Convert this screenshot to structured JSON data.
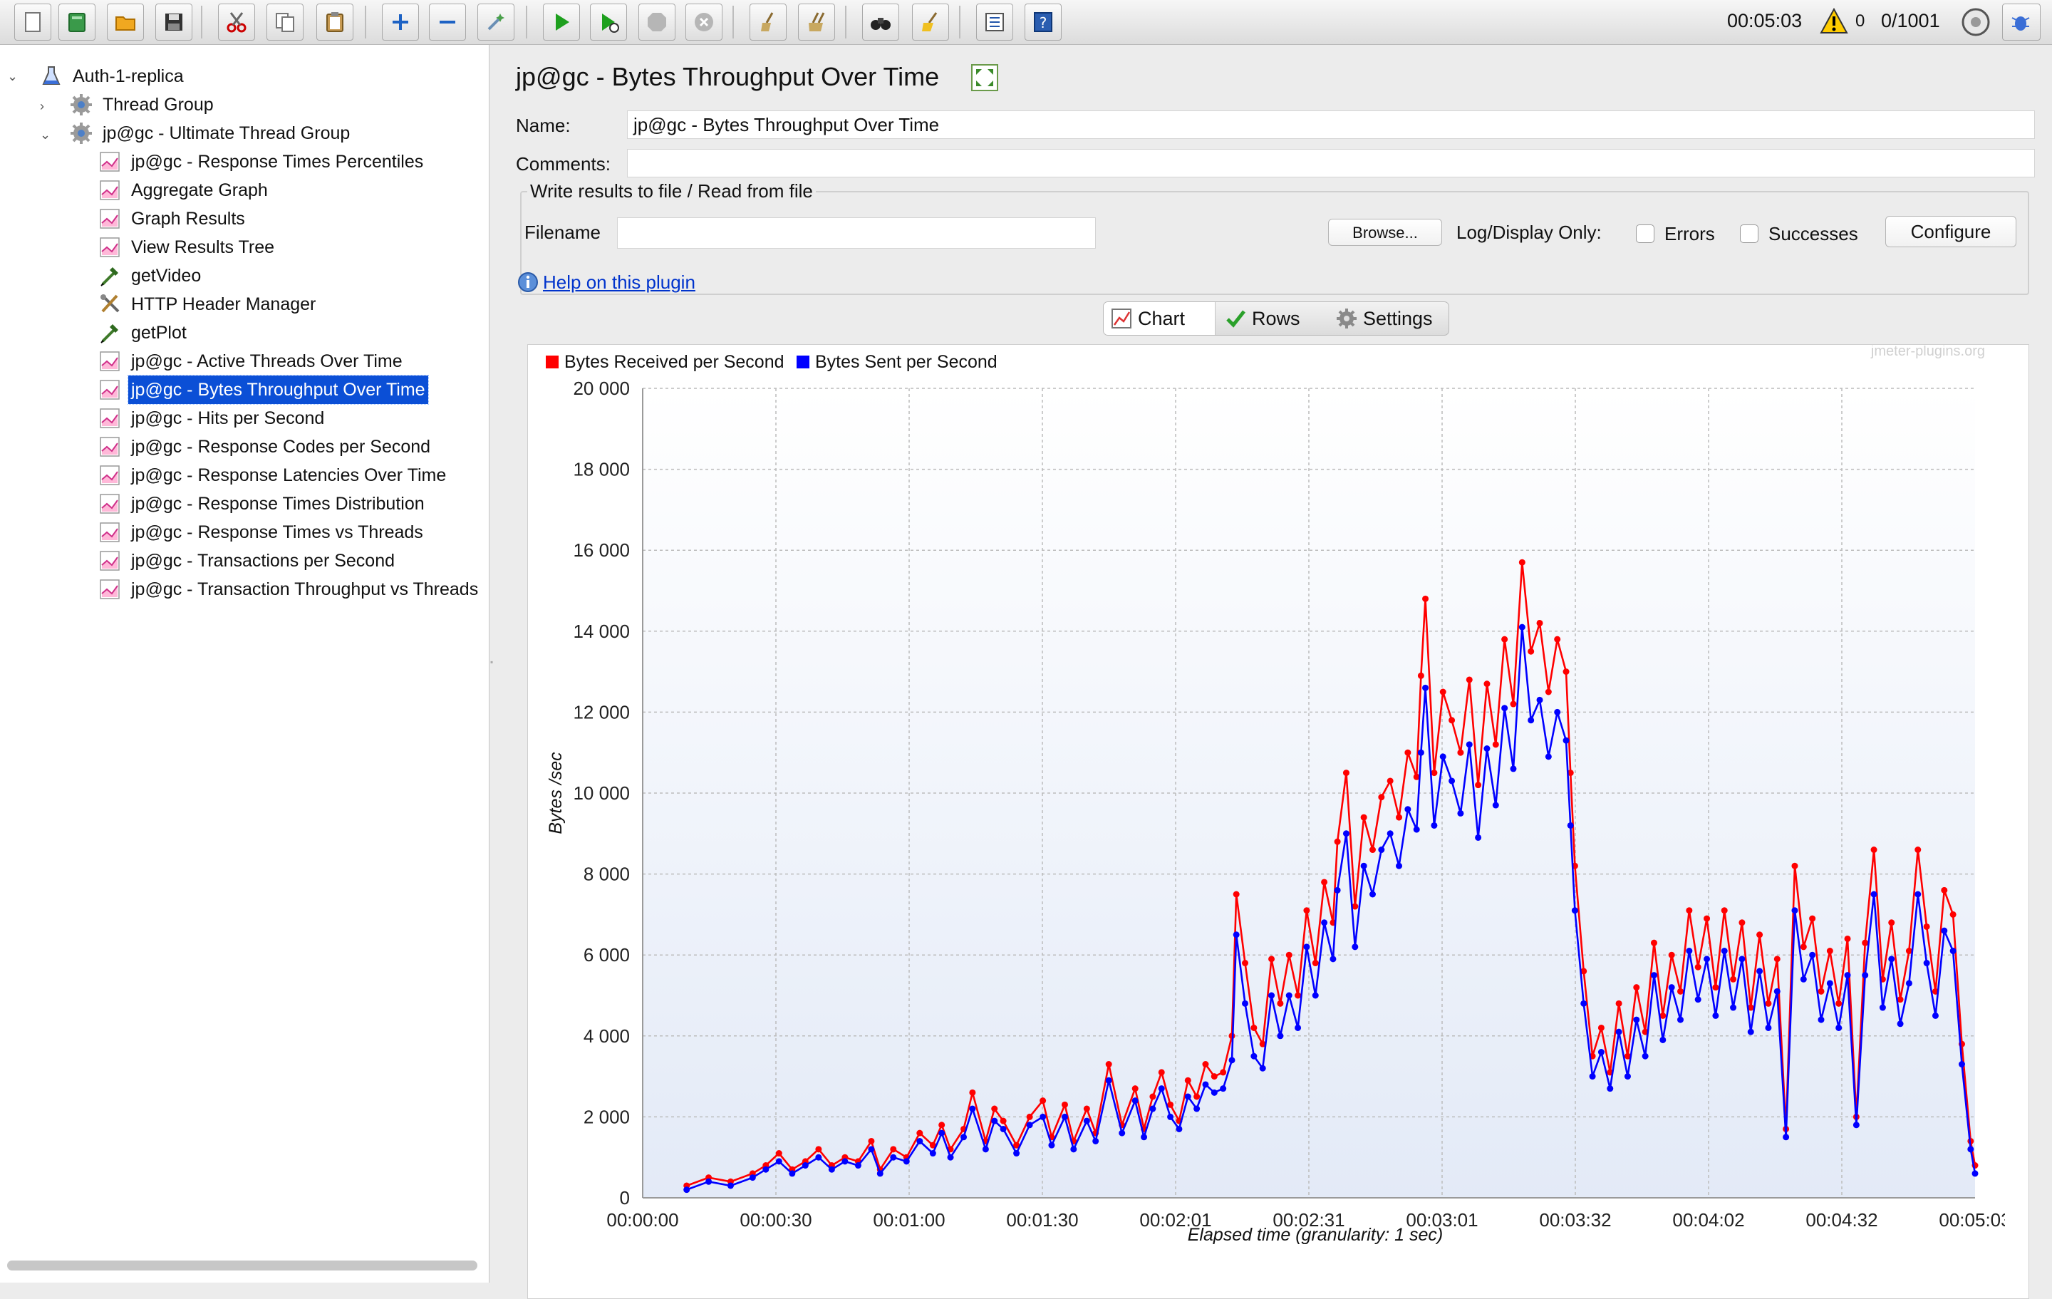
{
  "toolbar": {
    "elapsed": "00:05:03",
    "warning_count": "0",
    "threads": "0/1001"
  },
  "tree": {
    "items": [
      {
        "label": "Auth-1-replica",
        "level": 0,
        "icon": "flask-icon"
      },
      {
        "label": "Thread Group",
        "level": 1,
        "icon": "thread-group-icon"
      },
      {
        "label": "jp@gc - Ultimate Thread Group",
        "level": 1,
        "icon": "thread-group-icon"
      },
      {
        "label": "jp@gc - Response Times Percentiles",
        "level": 2,
        "icon": "graph-listener-icon"
      },
      {
        "label": "Aggregate Graph",
        "level": 2,
        "icon": "graph-listener-icon"
      },
      {
        "label": "Graph Results",
        "level": 2,
        "icon": "graph-listener-icon"
      },
      {
        "label": "View Results Tree",
        "level": 2,
        "icon": "graph-listener-icon"
      },
      {
        "label": "getVideo",
        "level": 2,
        "icon": "pipette-sampler-icon"
      },
      {
        "label": "HTTP Header Manager",
        "level": 2,
        "icon": "tools-config-icon"
      },
      {
        "label": "getPlot",
        "level": 2,
        "icon": "pipette-sampler-icon"
      },
      {
        "label": "jp@gc - Active Threads Over Time",
        "level": 2,
        "icon": "graph-listener-icon"
      },
      {
        "label": "jp@gc - Bytes Throughput Over Time",
        "level": 2,
        "icon": "graph-listener-icon",
        "selected": true
      },
      {
        "label": "jp@gc - Hits per Second",
        "level": 2,
        "icon": "graph-listener-icon"
      },
      {
        "label": "jp@gc - Response Codes per Second",
        "level": 2,
        "icon": "graph-listener-icon"
      },
      {
        "label": "jp@gc - Response Latencies Over Time",
        "level": 2,
        "icon": "graph-listener-icon"
      },
      {
        "label": "jp@gc - Response Times Distribution",
        "level": 2,
        "icon": "graph-listener-icon"
      },
      {
        "label": "jp@gc - Response Times vs Threads",
        "level": 2,
        "icon": "graph-listener-icon"
      },
      {
        "label": "jp@gc - Transactions per Second",
        "level": 2,
        "icon": "graph-listener-icon"
      },
      {
        "label": "jp@gc - Transaction Throughput vs Threads",
        "level": 2,
        "icon": "graph-listener-icon"
      }
    ]
  },
  "panel": {
    "title": "jp@gc - Bytes Throughput Over Time",
    "name_label": "Name:",
    "name_value": "jp@gc - Bytes Throughput Over Time",
    "comments_label": "Comments:",
    "comments_value": "",
    "fieldset_legend": "Write results to file / Read from file",
    "filename_label": "Filename",
    "filename_value": "",
    "browse_label": "Browse...",
    "log_display_label": "Log/Display Only:",
    "errors_label": "Errors",
    "successes_label": "Successes",
    "configure_label": "Configure",
    "help_link": "Help on this plugin",
    "tabs": {
      "chart": "Chart",
      "rows": "Rows",
      "settings": "Settings"
    }
  },
  "chart_data": {
    "type": "line",
    "watermark": "jmeter-plugins.org",
    "xlabel": "Elapsed time (granularity: 1 sec)",
    "ylabel": "Bytes /sec",
    "ylim": [
      0,
      20000
    ],
    "xlim_sec": [
      0,
      303
    ],
    "y_ticks": [
      "20 000",
      "18 000",
      "16 000",
      "14 000",
      "12 000",
      "10 000",
      "8 000",
      "6 000",
      "4 000",
      "2 000",
      "0"
    ],
    "x_ticks": [
      "00:00:00",
      "00:00:30",
      "00:01:00",
      "00:01:30",
      "00:02:01",
      "00:02:31",
      "00:03:01",
      "00:03:32",
      "00:04:02",
      "00:04:32",
      "00:05:03"
    ],
    "grid": true,
    "legend_position": "top-left",
    "colors": {
      "received": "#ff0000",
      "sent": "#0000ff"
    },
    "series": [
      {
        "name": "Bytes Received per Second",
        "points": [
          [
            10,
            300
          ],
          [
            15,
            500
          ],
          [
            20,
            400
          ],
          [
            25,
            600
          ],
          [
            28,
            800
          ],
          [
            31,
            1100
          ],
          [
            34,
            700
          ],
          [
            37,
            900
          ],
          [
            40,
            1200
          ],
          [
            43,
            800
          ],
          [
            46,
            1000
          ],
          [
            49,
            900
          ],
          [
            52,
            1400
          ],
          [
            54,
            700
          ],
          [
            57,
            1200
          ],
          [
            60,
            1000
          ],
          [
            63,
            1600
          ],
          [
            66,
            1300
          ],
          [
            68,
            1800
          ],
          [
            70,
            1200
          ],
          [
            73,
            1700
          ],
          [
            75,
            2600
          ],
          [
            78,
            1400
          ],
          [
            80,
            2200
          ],
          [
            82,
            1900
          ],
          [
            85,
            1300
          ],
          [
            88,
            2000
          ],
          [
            91,
            2400
          ],
          [
            93,
            1500
          ],
          [
            96,
            2300
          ],
          [
            98,
            1400
          ],
          [
            101,
            2200
          ],
          [
            103,
            1600
          ],
          [
            106,
            3300
          ],
          [
            109,
            1800
          ],
          [
            112,
            2700
          ],
          [
            114,
            1700
          ],
          [
            116,
            2500
          ],
          [
            118,
            3100
          ],
          [
            120,
            2300
          ],
          [
            122,
            1900
          ],
          [
            124,
            2900
          ],
          [
            126,
            2500
          ],
          [
            128,
            3300
          ],
          [
            130,
            3000
          ],
          [
            132,
            3100
          ],
          [
            134,
            4000
          ],
          [
            135,
            7500
          ],
          [
            137,
            5800
          ],
          [
            139,
            4200
          ],
          [
            141,
            3800
          ],
          [
            143,
            5900
          ],
          [
            145,
            4800
          ],
          [
            147,
            6000
          ],
          [
            149,
            5000
          ],
          [
            151,
            7100
          ],
          [
            153,
            5800
          ],
          [
            155,
            7800
          ],
          [
            157,
            6800
          ],
          [
            158,
            8800
          ],
          [
            160,
            10500
          ],
          [
            162,
            7200
          ],
          [
            164,
            9400
          ],
          [
            166,
            8600
          ],
          [
            168,
            9900
          ],
          [
            170,
            10300
          ],
          [
            172,
            9400
          ],
          [
            174,
            11000
          ],
          [
            176,
            10400
          ],
          [
            177,
            12900
          ],
          [
            178,
            14800
          ],
          [
            180,
            10500
          ],
          [
            182,
            12500
          ],
          [
            184,
            11800
          ],
          [
            186,
            11000
          ],
          [
            188,
            12800
          ],
          [
            190,
            10200
          ],
          [
            192,
            12700
          ],
          [
            194,
            11200
          ],
          [
            196,
            13800
          ],
          [
            198,
            12200
          ],
          [
            200,
            15700
          ],
          [
            202,
            13500
          ],
          [
            204,
            14200
          ],
          [
            206,
            12500
          ],
          [
            208,
            13800
          ],
          [
            210,
            13000
          ],
          [
            211,
            10500
          ],
          [
            212,
            8200
          ],
          [
            214,
            5600
          ],
          [
            216,
            3500
          ],
          [
            218,
            4200
          ],
          [
            220,
            3100
          ],
          [
            222,
            4800
          ],
          [
            224,
            3500
          ],
          [
            226,
            5200
          ],
          [
            228,
            4100
          ],
          [
            230,
            6300
          ],
          [
            232,
            4500
          ],
          [
            234,
            6000
          ],
          [
            236,
            5100
          ],
          [
            238,
            7100
          ],
          [
            240,
            5700
          ],
          [
            242,
            6900
          ],
          [
            244,
            5200
          ],
          [
            246,
            7100
          ],
          [
            248,
            5400
          ],
          [
            250,
            6800
          ],
          [
            252,
            4700
          ],
          [
            254,
            6500
          ],
          [
            256,
            4800
          ],
          [
            258,
            5900
          ],
          [
            260,
            1700
          ],
          [
            262,
            8200
          ],
          [
            264,
            6200
          ],
          [
            266,
            6900
          ],
          [
            268,
            5100
          ],
          [
            270,
            6100
          ],
          [
            272,
            4800
          ],
          [
            274,
            6400
          ],
          [
            276,
            2000
          ],
          [
            278,
            6300
          ],
          [
            280,
            8600
          ],
          [
            282,
            5400
          ],
          [
            284,
            6800
          ],
          [
            286,
            4900
          ],
          [
            288,
            6100
          ],
          [
            290,
            8600
          ],
          [
            292,
            6700
          ],
          [
            294,
            5100
          ],
          [
            296,
            7600
          ],
          [
            298,
            7000
          ],
          [
            300,
            3800
          ],
          [
            302,
            1400
          ],
          [
            303,
            800
          ]
        ]
      },
      {
        "name": "Bytes Sent per Second",
        "points": [
          [
            10,
            200
          ],
          [
            15,
            400
          ],
          [
            20,
            300
          ],
          [
            25,
            500
          ],
          [
            28,
            700
          ],
          [
            31,
            900
          ],
          [
            34,
            600
          ],
          [
            37,
            800
          ],
          [
            40,
            1000
          ],
          [
            43,
            700
          ],
          [
            46,
            900
          ],
          [
            49,
            800
          ],
          [
            52,
            1200
          ],
          [
            54,
            600
          ],
          [
            57,
            1000
          ],
          [
            60,
            900
          ],
          [
            63,
            1400
          ],
          [
            66,
            1100
          ],
          [
            68,
            1600
          ],
          [
            70,
            1000
          ],
          [
            73,
            1500
          ],
          [
            75,
            2200
          ],
          [
            78,
            1200
          ],
          [
            80,
            1900
          ],
          [
            82,
            1700
          ],
          [
            85,
            1100
          ],
          [
            88,
            1800
          ],
          [
            91,
            2000
          ],
          [
            93,
            1300
          ],
          [
            96,
            2000
          ],
          [
            98,
            1200
          ],
          [
            101,
            1900
          ],
          [
            103,
            1400
          ],
          [
            106,
            2900
          ],
          [
            109,
            1600
          ],
          [
            112,
            2400
          ],
          [
            114,
            1500
          ],
          [
            116,
            2200
          ],
          [
            118,
            2700
          ],
          [
            120,
            2000
          ],
          [
            122,
            1700
          ],
          [
            124,
            2500
          ],
          [
            126,
            2200
          ],
          [
            128,
            2800
          ],
          [
            130,
            2600
          ],
          [
            132,
            2700
          ],
          [
            134,
            3400
          ],
          [
            135,
            6500
          ],
          [
            137,
            4800
          ],
          [
            139,
            3500
          ],
          [
            141,
            3200
          ],
          [
            143,
            5000
          ],
          [
            145,
            4000
          ],
          [
            147,
            5000
          ],
          [
            149,
            4200
          ],
          [
            151,
            6200
          ],
          [
            153,
            5000
          ],
          [
            155,
            6800
          ],
          [
            157,
            5900
          ],
          [
            158,
            7600
          ],
          [
            160,
            9000
          ],
          [
            162,
            6200
          ],
          [
            164,
            8200
          ],
          [
            166,
            7500
          ],
          [
            168,
            8600
          ],
          [
            170,
            9000
          ],
          [
            172,
            8200
          ],
          [
            174,
            9600
          ],
          [
            176,
            9100
          ],
          [
            177,
            11000
          ],
          [
            178,
            12600
          ],
          [
            180,
            9200
          ],
          [
            182,
            10900
          ],
          [
            184,
            10300
          ],
          [
            186,
            9500
          ],
          [
            188,
            11200
          ],
          [
            190,
            8900
          ],
          [
            192,
            11100
          ],
          [
            194,
            9700
          ],
          [
            196,
            12100
          ],
          [
            198,
            10600
          ],
          [
            200,
            14100
          ],
          [
            202,
            11800
          ],
          [
            204,
            12300
          ],
          [
            206,
            10900
          ],
          [
            208,
            12000
          ],
          [
            210,
            11300
          ],
          [
            211,
            9200
          ],
          [
            212,
            7100
          ],
          [
            214,
            4800
          ],
          [
            216,
            3000
          ],
          [
            218,
            3600
          ],
          [
            220,
            2700
          ],
          [
            222,
            4100
          ],
          [
            224,
            3000
          ],
          [
            226,
            4400
          ],
          [
            228,
            3500
          ],
          [
            230,
            5500
          ],
          [
            232,
            3900
          ],
          [
            234,
            5200
          ],
          [
            236,
            4400
          ],
          [
            238,
            6100
          ],
          [
            240,
            4900
          ],
          [
            242,
            5900
          ],
          [
            244,
            4500
          ],
          [
            246,
            6100
          ],
          [
            248,
            4700
          ],
          [
            250,
            5900
          ],
          [
            252,
            4100
          ],
          [
            254,
            5600
          ],
          [
            256,
            4200
          ],
          [
            258,
            5100
          ],
          [
            260,
            1500
          ],
          [
            262,
            7100
          ],
          [
            264,
            5400
          ],
          [
            266,
            6000
          ],
          [
            268,
            4400
          ],
          [
            270,
            5300
          ],
          [
            272,
            4200
          ],
          [
            274,
            5500
          ],
          [
            276,
            1800
          ],
          [
            278,
            5500
          ],
          [
            280,
            7500
          ],
          [
            282,
            4700
          ],
          [
            284,
            5900
          ],
          [
            286,
            4300
          ],
          [
            288,
            5300
          ],
          [
            290,
            7500
          ],
          [
            292,
            5800
          ],
          [
            294,
            4500
          ],
          [
            296,
            6600
          ],
          [
            298,
            6100
          ],
          [
            300,
            3300
          ],
          [
            302,
            1200
          ],
          [
            303,
            600
          ]
        ]
      }
    ]
  }
}
